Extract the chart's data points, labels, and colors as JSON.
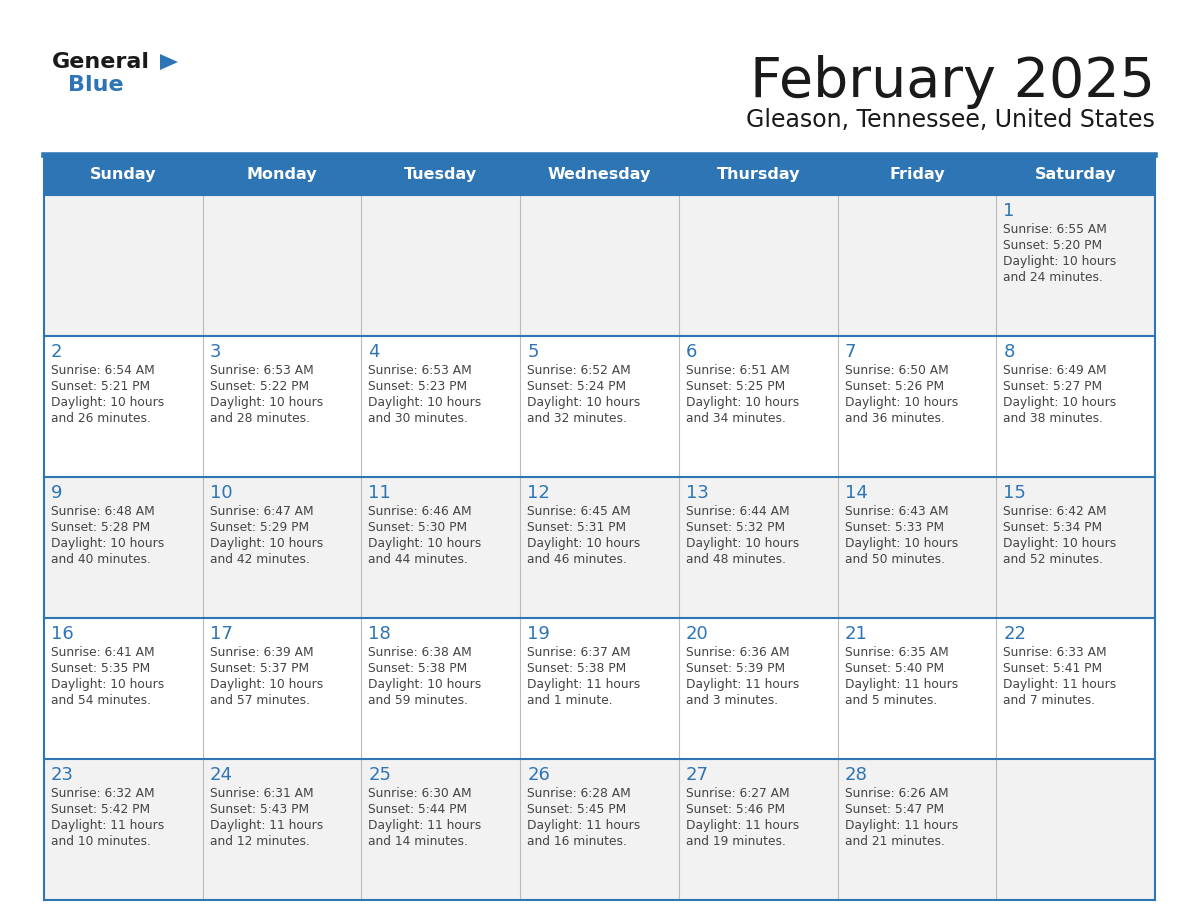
{
  "title": "February 2025",
  "subtitle": "Gleason, Tennessee, United States",
  "header_bg": "#2E75B6",
  "header_text_color": "#FFFFFF",
  "day_names": [
    "Sunday",
    "Monday",
    "Tuesday",
    "Wednesday",
    "Thursday",
    "Friday",
    "Saturday"
  ],
  "row_bg": [
    "#F2F2F2",
    "#FFFFFF",
    "#F2F2F2",
    "#FFFFFF",
    "#F2F2F2"
  ],
  "border_color": "#2E75B6",
  "cell_border_color": "#AAAAAA",
  "text_color": "#444444",
  "number_color": "#2E75B6",
  "calendar": [
    [
      null,
      null,
      null,
      null,
      null,
      null,
      {
        "day": 1,
        "sunrise": "6:55 AM",
        "sunset": "5:20 PM",
        "daylight_line1": "Daylight: 10 hours",
        "daylight_line2": "and 24 minutes."
      }
    ],
    [
      {
        "day": 2,
        "sunrise": "6:54 AM",
        "sunset": "5:21 PM",
        "daylight_line1": "Daylight: 10 hours",
        "daylight_line2": "and 26 minutes."
      },
      {
        "day": 3,
        "sunrise": "6:53 AM",
        "sunset": "5:22 PM",
        "daylight_line1": "Daylight: 10 hours",
        "daylight_line2": "and 28 minutes."
      },
      {
        "day": 4,
        "sunrise": "6:53 AM",
        "sunset": "5:23 PM",
        "daylight_line1": "Daylight: 10 hours",
        "daylight_line2": "and 30 minutes."
      },
      {
        "day": 5,
        "sunrise": "6:52 AM",
        "sunset": "5:24 PM",
        "daylight_line1": "Daylight: 10 hours",
        "daylight_line2": "and 32 minutes."
      },
      {
        "day": 6,
        "sunrise": "6:51 AM",
        "sunset": "5:25 PM",
        "daylight_line1": "Daylight: 10 hours",
        "daylight_line2": "and 34 minutes."
      },
      {
        "day": 7,
        "sunrise": "6:50 AM",
        "sunset": "5:26 PM",
        "daylight_line1": "Daylight: 10 hours",
        "daylight_line2": "and 36 minutes."
      },
      {
        "day": 8,
        "sunrise": "6:49 AM",
        "sunset": "5:27 PM",
        "daylight_line1": "Daylight: 10 hours",
        "daylight_line2": "and 38 minutes."
      }
    ],
    [
      {
        "day": 9,
        "sunrise": "6:48 AM",
        "sunset": "5:28 PM",
        "daylight_line1": "Daylight: 10 hours",
        "daylight_line2": "and 40 minutes."
      },
      {
        "day": 10,
        "sunrise": "6:47 AM",
        "sunset": "5:29 PM",
        "daylight_line1": "Daylight: 10 hours",
        "daylight_line2": "and 42 minutes."
      },
      {
        "day": 11,
        "sunrise": "6:46 AM",
        "sunset": "5:30 PM",
        "daylight_line1": "Daylight: 10 hours",
        "daylight_line2": "and 44 minutes."
      },
      {
        "day": 12,
        "sunrise": "6:45 AM",
        "sunset": "5:31 PM",
        "daylight_line1": "Daylight: 10 hours",
        "daylight_line2": "and 46 minutes."
      },
      {
        "day": 13,
        "sunrise": "6:44 AM",
        "sunset": "5:32 PM",
        "daylight_line1": "Daylight: 10 hours",
        "daylight_line2": "and 48 minutes."
      },
      {
        "day": 14,
        "sunrise": "6:43 AM",
        "sunset": "5:33 PM",
        "daylight_line1": "Daylight: 10 hours",
        "daylight_line2": "and 50 minutes."
      },
      {
        "day": 15,
        "sunrise": "6:42 AM",
        "sunset": "5:34 PM",
        "daylight_line1": "Daylight: 10 hours",
        "daylight_line2": "and 52 minutes."
      }
    ],
    [
      {
        "day": 16,
        "sunrise": "6:41 AM",
        "sunset": "5:35 PM",
        "daylight_line1": "Daylight: 10 hours",
        "daylight_line2": "and 54 minutes."
      },
      {
        "day": 17,
        "sunrise": "6:39 AM",
        "sunset": "5:37 PM",
        "daylight_line1": "Daylight: 10 hours",
        "daylight_line2": "and 57 minutes."
      },
      {
        "day": 18,
        "sunrise": "6:38 AM",
        "sunset": "5:38 PM",
        "daylight_line1": "Daylight: 10 hours",
        "daylight_line2": "and 59 minutes."
      },
      {
        "day": 19,
        "sunrise": "6:37 AM",
        "sunset": "5:38 PM",
        "daylight_line1": "Daylight: 11 hours",
        "daylight_line2": "and 1 minute."
      },
      {
        "day": 20,
        "sunrise": "6:36 AM",
        "sunset": "5:39 PM",
        "daylight_line1": "Daylight: 11 hours",
        "daylight_line2": "and 3 minutes."
      },
      {
        "day": 21,
        "sunrise": "6:35 AM",
        "sunset": "5:40 PM",
        "daylight_line1": "Daylight: 11 hours",
        "daylight_line2": "and 5 minutes."
      },
      {
        "day": 22,
        "sunrise": "6:33 AM",
        "sunset": "5:41 PM",
        "daylight_line1": "Daylight: 11 hours",
        "daylight_line2": "and 7 minutes."
      }
    ],
    [
      {
        "day": 23,
        "sunrise": "6:32 AM",
        "sunset": "5:42 PM",
        "daylight_line1": "Daylight: 11 hours",
        "daylight_line2": "and 10 minutes."
      },
      {
        "day": 24,
        "sunrise": "6:31 AM",
        "sunset": "5:43 PM",
        "daylight_line1": "Daylight: 11 hours",
        "daylight_line2": "and 12 minutes."
      },
      {
        "day": 25,
        "sunrise": "6:30 AM",
        "sunset": "5:44 PM",
        "daylight_line1": "Daylight: 11 hours",
        "daylight_line2": "and 14 minutes."
      },
      {
        "day": 26,
        "sunrise": "6:28 AM",
        "sunset": "5:45 PM",
        "daylight_line1": "Daylight: 11 hours",
        "daylight_line2": "and 16 minutes."
      },
      {
        "day": 27,
        "sunrise": "6:27 AM",
        "sunset": "5:46 PM",
        "daylight_line1": "Daylight: 11 hours",
        "daylight_line2": "and 19 minutes."
      },
      {
        "day": 28,
        "sunrise": "6:26 AM",
        "sunset": "5:47 PM",
        "daylight_line1": "Daylight: 11 hours",
        "daylight_line2": "and 21 minutes."
      },
      null
    ]
  ]
}
